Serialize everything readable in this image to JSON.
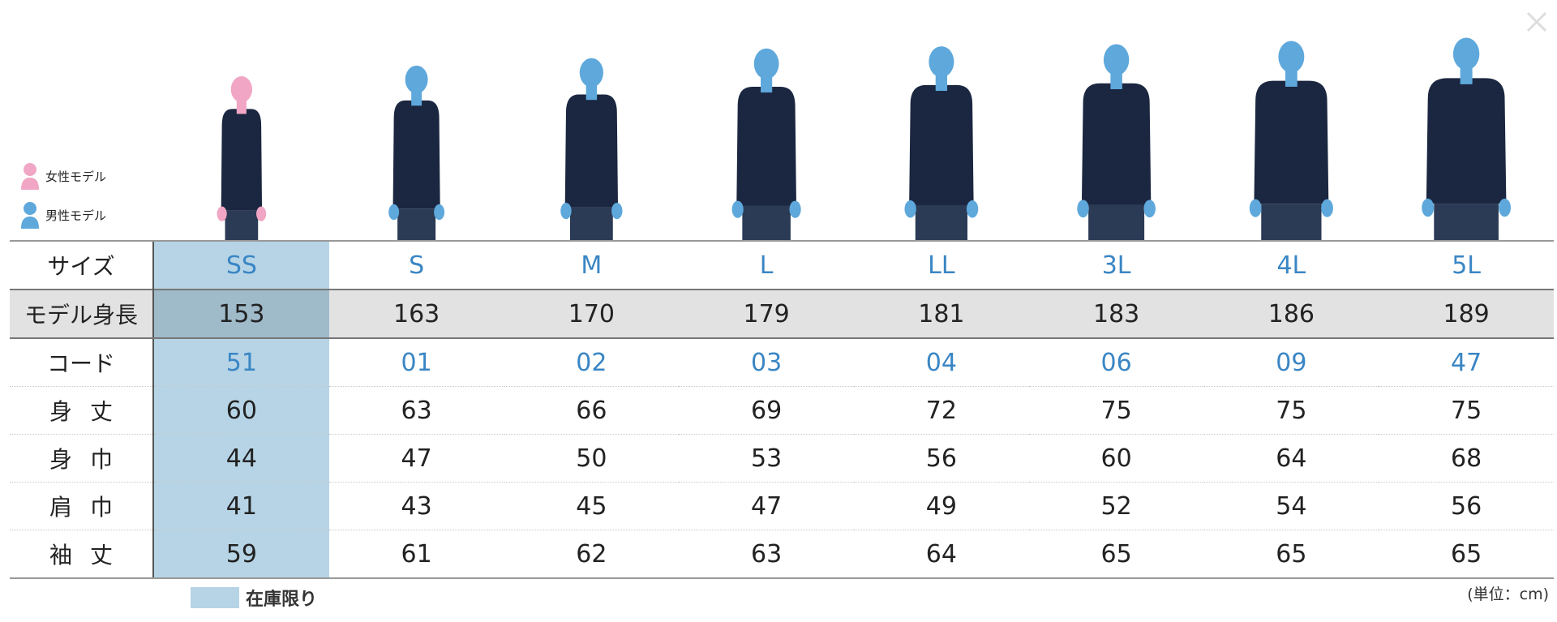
{
  "legend": {
    "female": "女性モデル",
    "male": "男性モデル"
  },
  "table": {
    "rows": [
      [
        "サイズ",
        "SS",
        "S",
        "M",
        "L",
        "LL",
        "3L",
        "4L",
        "5L"
      ],
      [
        "モデル身長",
        153,
        163,
        170,
        179,
        181,
        183,
        186,
        189
      ],
      [
        "コード",
        "51",
        "01",
        "02",
        "03",
        "04",
        "06",
        "09",
        "47"
      ],
      [
        "身丈",
        60,
        63,
        66,
        69,
        72,
        75,
        75,
        75
      ],
      [
        "身巾",
        44,
        47,
        50,
        53,
        56,
        60,
        64,
        68
      ],
      [
        "肩巾",
        41,
        43,
        45,
        47,
        49,
        52,
        54,
        56
      ],
      [
        "袖丈",
        59,
        61,
        62,
        63,
        64,
        65,
        65,
        65
      ]
    ]
  },
  "note": "在庫限り",
  "unit": "(単位：cm)"
}
